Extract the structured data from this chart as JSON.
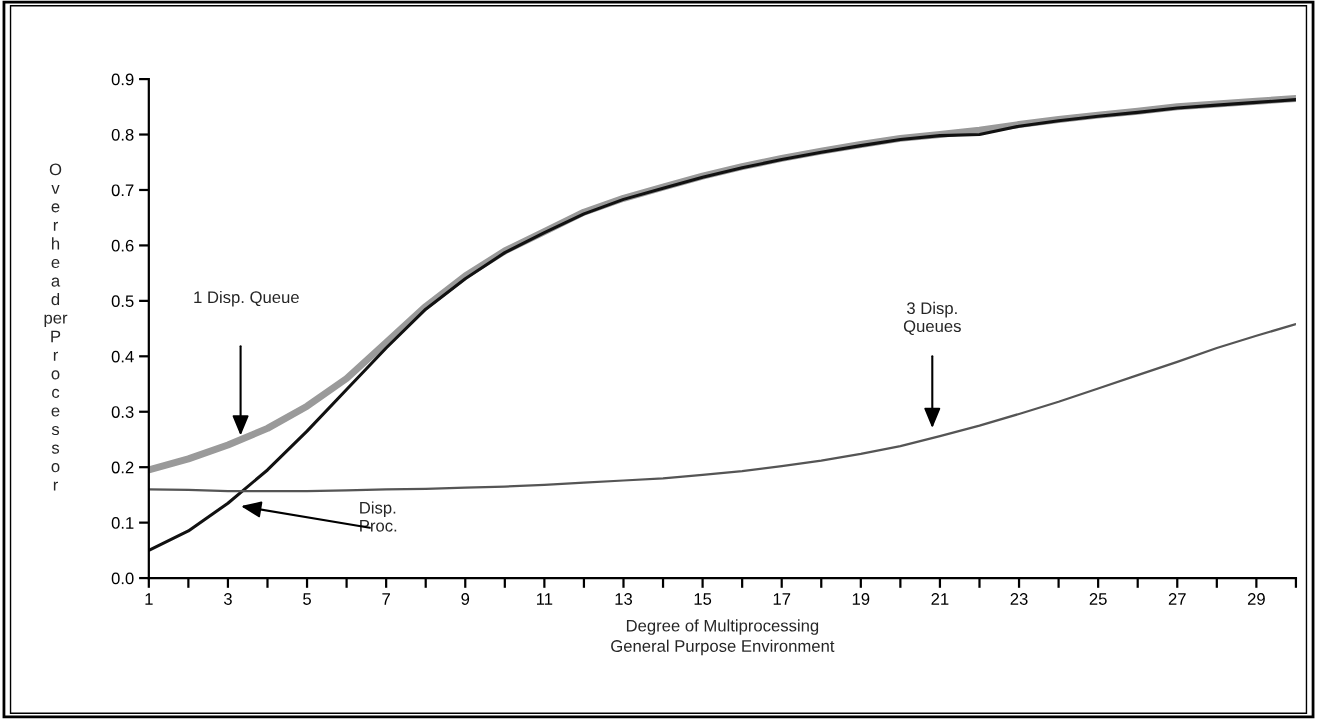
{
  "chart_data": {
    "type": "line",
    "xlabel": "Degree of Multiprocessing\nGeneral Purpose Environment",
    "ylabel": "Overhead per Processor",
    "x": [
      1,
      2,
      3,
      4,
      5,
      6,
      7,
      8,
      9,
      10,
      11,
      12,
      13,
      14,
      15,
      16,
      17,
      18,
      19,
      20,
      21,
      22,
      23,
      24,
      25,
      26,
      27,
      28,
      29,
      30
    ],
    "series": [
      {
        "color": "#9a9a9a",
        "values": [
          0.195,
          0.215,
          0.24,
          0.27,
          0.31,
          0.36,
          0.425,
          0.49,
          0.545,
          0.59,
          0.625,
          0.66,
          0.685,
          0.705,
          0.725,
          0.742,
          0.757,
          0.77,
          0.782,
          0.793,
          0.8,
          0.808,
          0.818,
          0.827,
          0.835,
          0.842,
          0.85,
          0.855,
          0.86,
          0.865
        ]
      },
      {
        "color": "#111111",
        "values": [
          0.05,
          0.085,
          0.135,
          0.195,
          0.265,
          0.34,
          0.415,
          0.485,
          0.54,
          0.587,
          0.623,
          0.657,
          0.683,
          0.703,
          0.723,
          0.74,
          0.755,
          0.768,
          0.78,
          0.791,
          0.798,
          0.8,
          0.815,
          0.825,
          0.833,
          0.84,
          0.848,
          0.853,
          0.858,
          0.863
        ]
      },
      {
        "color": "#555555",
        "values": [
          0.16,
          0.159,
          0.157,
          0.157,
          0.157,
          0.158,
          0.16,
          0.161,
          0.163,
          0.165,
          0.168,
          0.172,
          0.176,
          0.18,
          0.186,
          0.193,
          0.202,
          0.212,
          0.224,
          0.238,
          0.256,
          0.275,
          0.296,
          0.318,
          0.342,
          0.366,
          0.39,
          0.415,
          0.437,
          0.458
        ]
      }
    ],
    "annotations": [
      "1 Disp. Queue",
      "Disp.\nProc.",
      "3 Disp.\nQueues"
    ],
    "xlim": [
      1,
      30
    ],
    "xticks": [
      1,
      {
        "value": 2,
        "label": null
      },
      3,
      {
        "value": 4,
        "label": null
      },
      5,
      {
        "value": 6,
        "label": null
      },
      7,
      {
        "value": 8,
        "label": null
      },
      9,
      {
        "value": 10,
        "label": null
      },
      11,
      {
        "value": 12,
        "label": null
      },
      13,
      {
        "value": 14,
        "label": null
      },
      15,
      {
        "value": 16,
        "label": null
      },
      17,
      {
        "value": 18,
        "label": null
      },
      19,
      {
        "value": 20,
        "label": null
      },
      21,
      {
        "value": 22,
        "label": null
      },
      23,
      {
        "value": 24,
        "label": null
      },
      25,
      {
        "value": 26,
        "label": null
      },
      27,
      {
        "value": 28,
        "label": null
      },
      29,
      {
        "value": 30,
        "label": null
      }
    ],
    "ylim": [
      0,
      0.9
    ],
    "yticks": [
      {
        "value": 0,
        "label": "0.0"
      },
      0.1,
      0.2,
      0.3,
      0.4,
      0.5,
      0.6,
      0.7,
      0.8,
      0.9
    ],
    "grid": false,
    "legend": false,
    "marker": "none",
    "line_style": "solid"
  }
}
